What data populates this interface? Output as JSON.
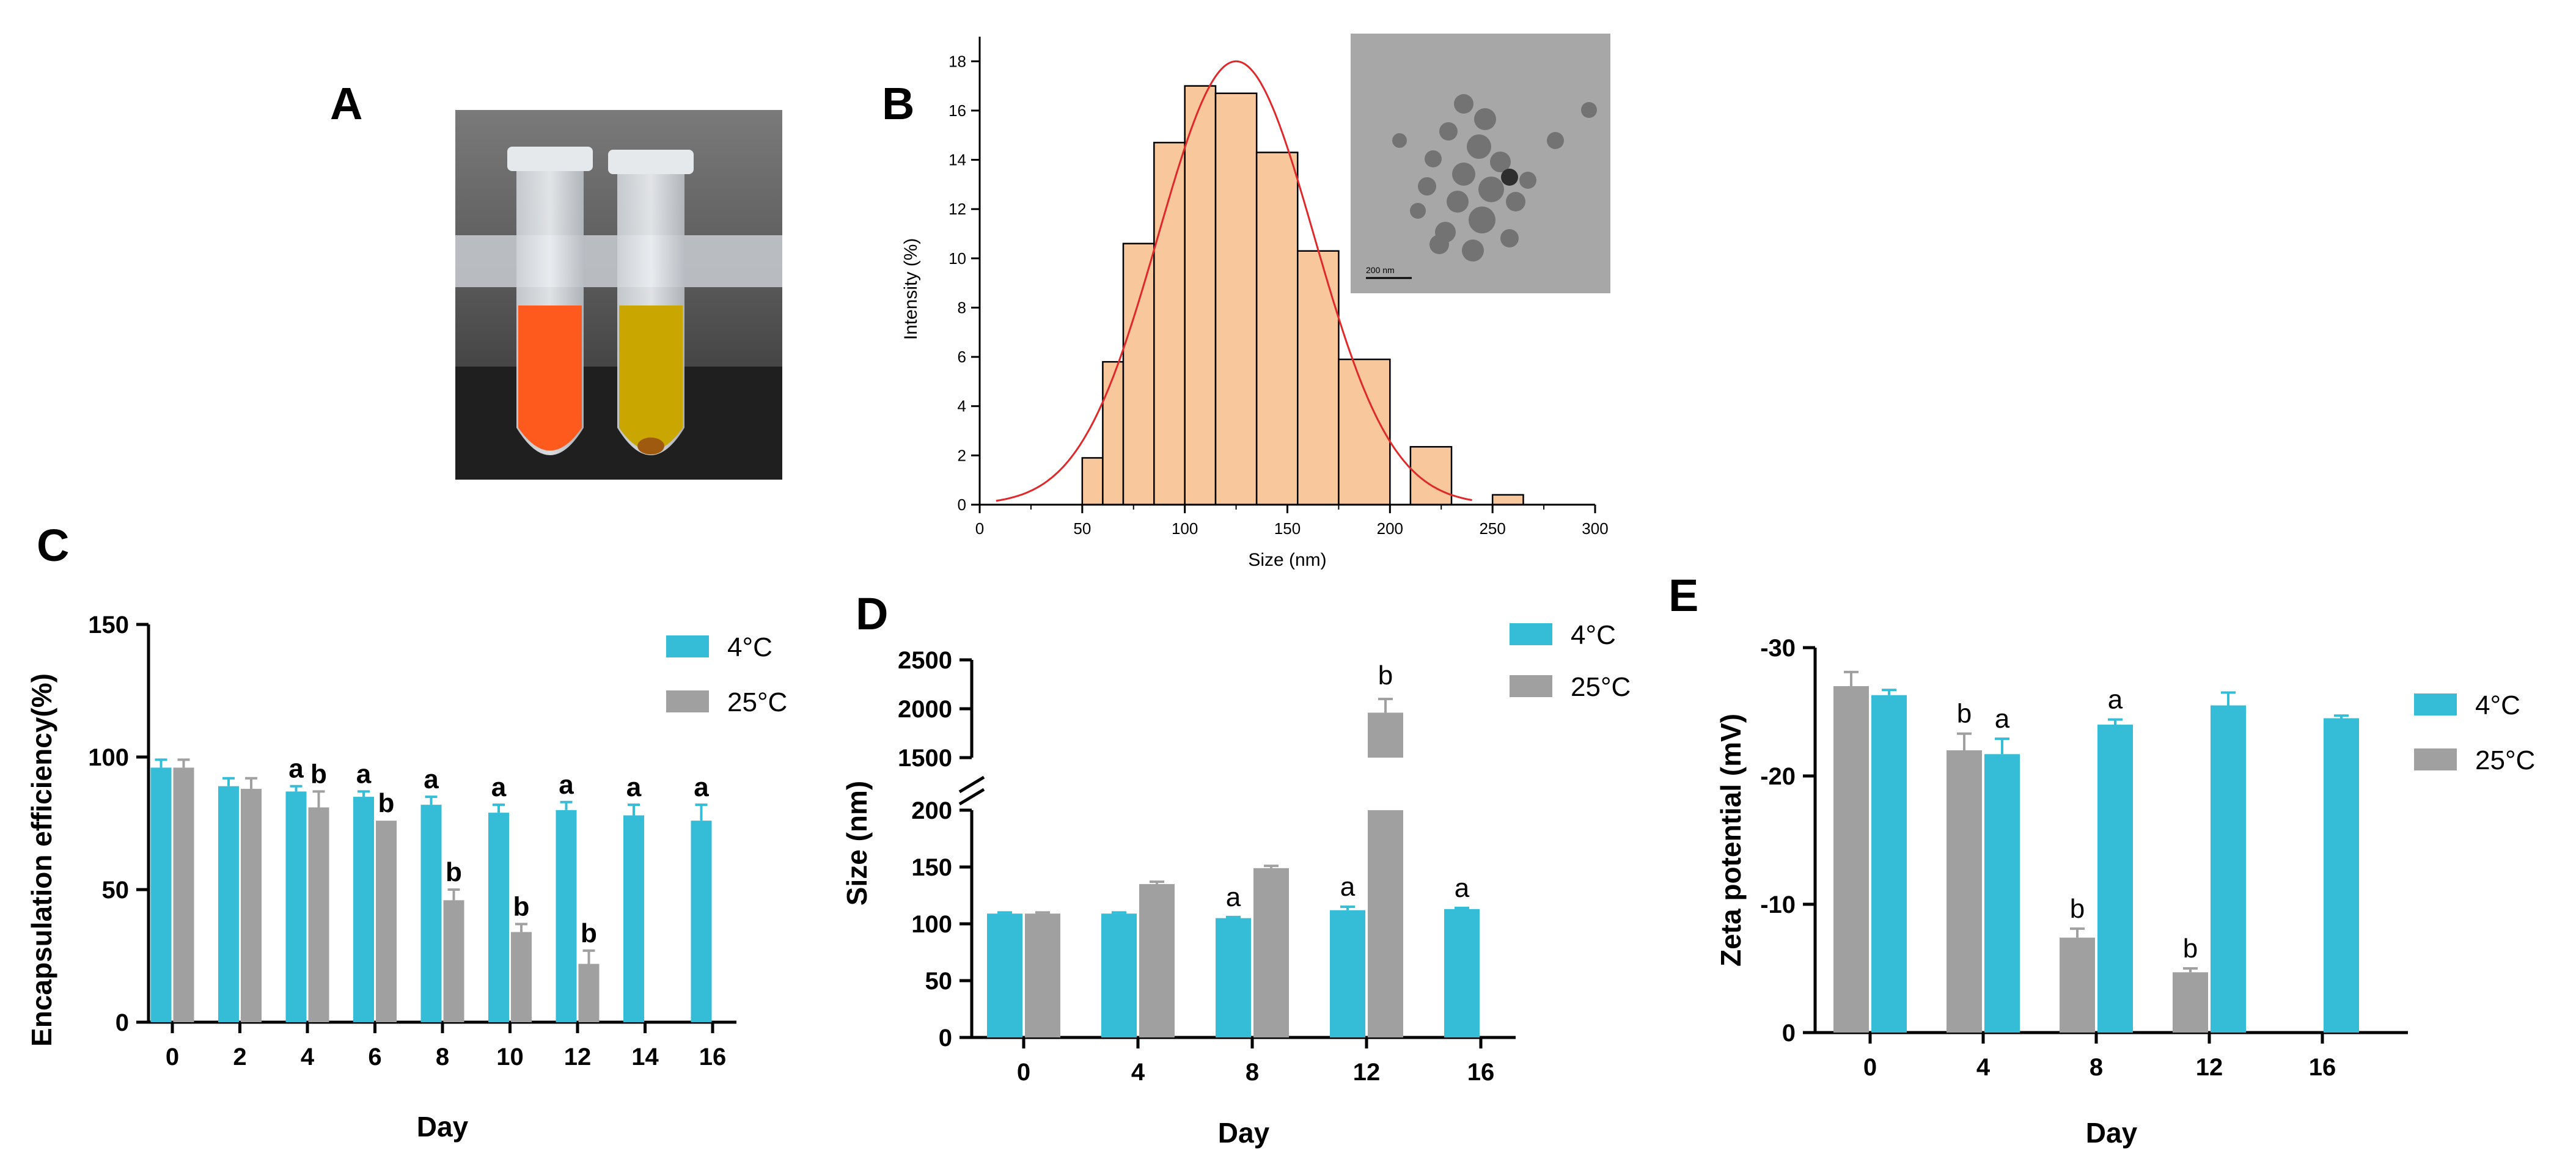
{
  "panels": {
    "A": {
      "label": "A"
    },
    "B": {
      "label": "B"
    },
    "C": {
      "label": "C"
    },
    "D": {
      "label": "D"
    },
    "E": {
      "label": "E"
    }
  },
  "colors": {
    "c4": "#35BCD6",
    "c25": "#A0A0A0",
    "hist": "#F9C79C",
    "curve": "#E0282A"
  },
  "legend": {
    "s1": "4°C",
    "s2": "25°C"
  },
  "photo": {
    "tube1_color": "#FF5A1E",
    "tube2_color": "#C9A600"
  },
  "tem_scalebar": "200 nm",
  "chart_data": [
    {
      "id": "B",
      "type": "bar",
      "subtype": "histogram-with-fit",
      "xlabel": "Size (nm)",
      "ylabel": "Intensity (%)",
      "xlim": [
        0,
        300
      ],
      "ylim": [
        0,
        19
      ],
      "xticks": [
        "0",
        "50",
        "100",
        "150",
        "200",
        "250",
        "300"
      ],
      "yticks": [
        "0",
        "2",
        "4",
        "6",
        "8",
        "10",
        "12",
        "14",
        "16",
        "18"
      ],
      "bins": [
        {
          "x": [
            50,
            60
          ],
          "value": 1.9
        },
        {
          "x": [
            60,
            70
          ],
          "value": 5.8
        },
        {
          "x": [
            70,
            85
          ],
          "value": 10.6
        },
        {
          "x": [
            85,
            100
          ],
          "value": 14.7
        },
        {
          "x": [
            100,
            115
          ],
          "value": 17.0
        },
        {
          "x": [
            115,
            135
          ],
          "value": 16.7
        },
        {
          "x": [
            135,
            155
          ],
          "value": 14.3
        },
        {
          "x": [
            155,
            175
          ],
          "value": 10.3
        },
        {
          "x": [
            175,
            200
          ],
          "value": 5.9
        },
        {
          "x": [
            210,
            230
          ],
          "value": 2.35
        },
        {
          "x": [
            250,
            265
          ],
          "value": 0.4
        }
      ],
      "fit": {
        "type": "gaussian",
        "mean": 125,
        "sd": 38,
        "peak": 18.0
      }
    },
    {
      "id": "C",
      "type": "bar",
      "xlabel": "Day",
      "ylabel": "Encapsulation efficiency(%)",
      "ylim": [
        0,
        150
      ],
      "yticks": [
        "0",
        "50",
        "100",
        "150"
      ],
      "categories": [
        "0",
        "2",
        "4",
        "6",
        "8",
        "10",
        "12",
        "14",
        "16"
      ],
      "series": [
        {
          "name": "4°C",
          "values": [
            96,
            89,
            87,
            85,
            82,
            79,
            80,
            78,
            76
          ],
          "errors": [
            3,
            3,
            2,
            2,
            3,
            3,
            3,
            4,
            6
          ],
          "labels": [
            "",
            "",
            "a",
            "a",
            "a",
            "a",
            "a",
            "a",
            "a"
          ]
        },
        {
          "name": "25°C",
          "values": [
            96,
            88,
            81,
            76,
            46,
            34,
            22,
            null,
            null
          ],
          "errors": [
            3,
            4,
            6,
            0,
            4,
            3,
            5,
            null,
            null
          ],
          "labels": [
            "",
            "",
            "b",
            "b",
            "b",
            "b",
            "b",
            "",
            ""
          ]
        }
      ]
    },
    {
      "id": "D",
      "type": "bar",
      "xlabel": "Day",
      "ylabel": "Size (nm)",
      "y_axis_break": {
        "lower": [
          0,
          200
        ],
        "upper": [
          1500,
          2500
        ]
      },
      "yticks": [
        "0",
        "50",
        "100",
        "150",
        "200",
        "1500",
        "2000",
        "2500"
      ],
      "categories": [
        "0",
        "4",
        "8",
        "12",
        "16"
      ],
      "series": [
        {
          "name": "4°C",
          "values": [
            109,
            109,
            105,
            112,
            113
          ],
          "errors": [
            1,
            1,
            1,
            3,
            1
          ],
          "labels": [
            "",
            "",
            "a",
            "a",
            "a"
          ]
        },
        {
          "name": "25°C",
          "values": [
            109,
            135,
            149,
            1960,
            null
          ],
          "errors": [
            1,
            2,
            2,
            140,
            null
          ],
          "labels": [
            "",
            "",
            "",
            "b",
            ""
          ]
        }
      ]
    },
    {
      "id": "E",
      "type": "bar",
      "xlabel": "Day",
      "ylabel": "Zeta potential (mV)",
      "ylim": [
        0,
        -30
      ],
      "yticks": [
        "0",
        "-10",
        "-20",
        "-30"
      ],
      "categories": [
        "0",
        "4",
        "8",
        "12",
        "16"
      ],
      "series": [
        {
          "name": "25°C",
          "values": [
            -27.0,
            -22.0,
            -7.4,
            -4.7,
            null
          ],
          "errors": [
            1.1,
            1.3,
            0.7,
            0.3,
            null
          ],
          "labels": [
            "",
            "b",
            "b",
            "b",
            ""
          ]
        },
        {
          "name": "4°C",
          "values": [
            -26.3,
            -21.7,
            -24.0,
            -25.5,
            -24.5
          ],
          "errors": [
            0.4,
            1.2,
            0.4,
            1.0,
            0.2
          ],
          "labels": [
            "",
            "a",
            "a",
            "",
            ""
          ]
        }
      ]
    }
  ]
}
